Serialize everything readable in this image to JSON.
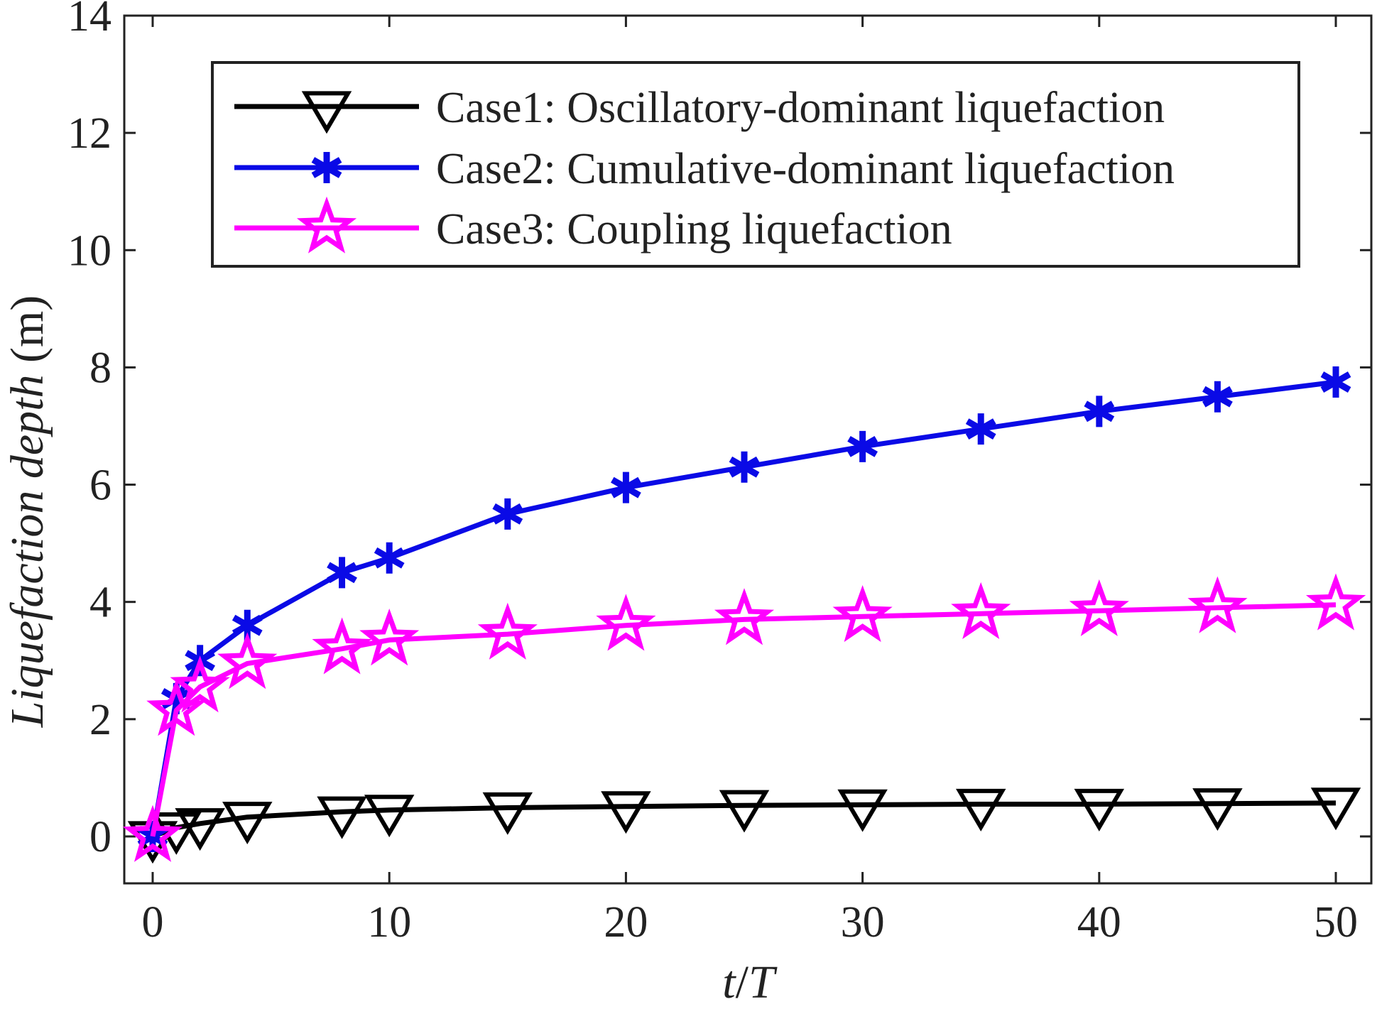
{
  "chart_data": {
    "type": "line",
    "title": "",
    "xlabel": "t/T",
    "xlabel_parts": {
      "t": "t",
      "slash": "/",
      "T": "T"
    },
    "ylabel": "Liquefaction depth (m)",
    "ylabel_parts": {
      "italic": "Liquefaction depth",
      "plain": "(m)"
    },
    "xlim": [
      -1.2,
      51.5
    ],
    "ylim": [
      -0.8,
      14
    ],
    "xticks": [
      0,
      10,
      20,
      30,
      40,
      50
    ],
    "yticks": [
      0,
      2,
      4,
      6,
      8,
      10,
      12,
      14
    ],
    "xtick_labels": [
      "0",
      "10",
      "20",
      "30",
      "40",
      "50"
    ],
    "ytick_labels": [
      "0",
      "2",
      "4",
      "6",
      "8",
      "10",
      "12",
      "14"
    ],
    "grid": false,
    "legend_position": "top",
    "x": [
      0,
      1,
      2,
      4,
      8,
      10,
      15,
      20,
      25,
      30,
      35,
      40,
      45,
      50
    ],
    "series": [
      {
        "name": "Case1: Oscillatory-dominant liquefaction",
        "color": "#000000",
        "marker": "triangle-down",
        "values": [
          0.0,
          0.15,
          0.22,
          0.33,
          0.42,
          0.45,
          0.49,
          0.51,
          0.53,
          0.54,
          0.55,
          0.55,
          0.56,
          0.57
        ]
      },
      {
        "name": "Case2: Cumulative-dominant liquefaction",
        "color": "#0a0ae6",
        "marker": "asterisk",
        "values": [
          0.0,
          2.35,
          3.0,
          3.6,
          4.5,
          4.75,
          5.5,
          5.95,
          6.3,
          6.65,
          6.95,
          7.25,
          7.5,
          7.75
        ]
      },
      {
        "name": "Case3: Coupling liquefaction",
        "color": "#ff00ff",
        "marker": "star",
        "values": [
          0.0,
          2.15,
          2.55,
          2.95,
          3.2,
          3.35,
          3.45,
          3.6,
          3.7,
          3.75,
          3.8,
          3.85,
          3.9,
          3.95
        ]
      }
    ]
  }
}
